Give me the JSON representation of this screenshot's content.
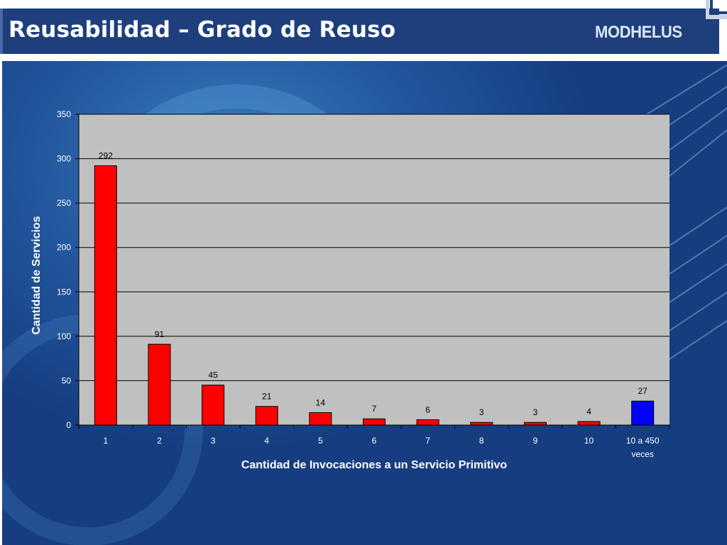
{
  "header": {
    "title": "Reusabilidad – Grado de Reuso",
    "logo_text": "MODHELUS"
  },
  "colors": {
    "header_bg": "#1e3f7c",
    "plot_bg": "#c0c0c0",
    "bar_primary": "#ff0000",
    "bar_highlight": "#0000ff",
    "axis_text": "#ffffff"
  },
  "chart_data": {
    "type": "bar",
    "categories": [
      "1",
      "2",
      "3",
      "4",
      "5",
      "6",
      "7",
      "8",
      "9",
      "10",
      "10 a 450 veces"
    ],
    "values": [
      292,
      91,
      45,
      21,
      14,
      7,
      6,
      3,
      3,
      4,
      27
    ],
    "bar_colors": [
      "#ff0000",
      "#ff0000",
      "#ff0000",
      "#ff0000",
      "#ff0000",
      "#ff0000",
      "#ff0000",
      "#ff0000",
      "#ff0000",
      "#ff0000",
      "#0000ff"
    ],
    "xlabel": "Cantidad de Invocaciones a un Servicio Primitivo",
    "ylabel": "Cantidad de Servicios",
    "ylim": [
      0,
      350
    ],
    "yticks": [
      0,
      50,
      100,
      150,
      200,
      250,
      300,
      350
    ],
    "grid": true,
    "legend": "none"
  }
}
